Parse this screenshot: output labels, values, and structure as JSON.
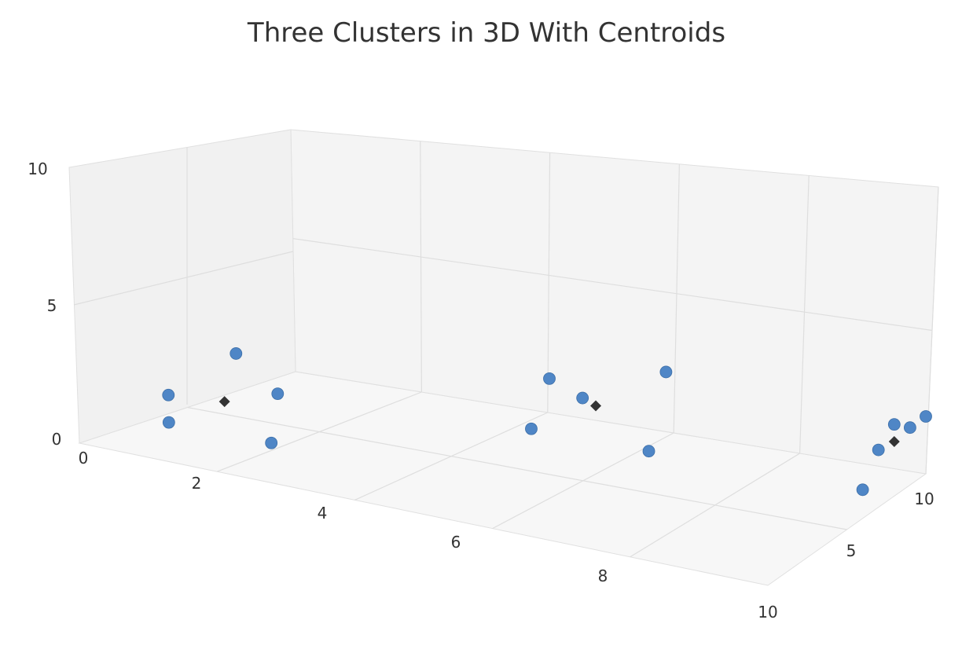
{
  "chart_data": {
    "type": "scatter",
    "title": "Three Clusters in 3D With Centroids",
    "xlabel": "",
    "ylabel": "",
    "zlabel": "",
    "xlim": [
      0,
      10
    ],
    "ylim": [
      0,
      10
    ],
    "zlim": [
      0,
      10
    ],
    "x_ticks": [
      "0",
      "2",
      "4",
      "6",
      "8",
      "10"
    ],
    "y_ticks": [
      "0",
      "5",
      "10"
    ],
    "z_ticks": [
      "5",
      "10"
    ],
    "grid": true,
    "legend": "none",
    "series": [
      {
        "role": "points",
        "color": "#4f86c6",
        "marker": "circle",
        "values": [
          {
            "x": 1.0,
            "y": 2.0,
            "z": 1.0
          },
          {
            "x": 1.0,
            "y": 1.0,
            "z": 1.0
          },
          {
            "x": 2.0,
            "y": 4.0,
            "z": 1.0
          },
          {
            "x": 2.0,
            "y": 2.0,
            "z": 3.0
          },
          {
            "x": 2.5,
            "y": 1.0,
            "z": 1.0
          },
          {
            "x": 5.5,
            "y": 2.0,
            "z": 4.0
          },
          {
            "x": 5.5,
            "y": 3.5,
            "z": 5.0
          },
          {
            "x": 6.0,
            "y": 3.0,
            "z": 5.0
          },
          {
            "x": 7.0,
            "y": 4.0,
            "z": 6.0
          },
          {
            "x": 7.0,
            "y": 1.5,
            "z": 5.0
          },
          {
            "x": 10.0,
            "y": 2.0,
            "z": 7.0
          },
          {
            "x": 10.0,
            "y": 2.5,
            "z": 8.0
          },
          {
            "x": 10.0,
            "y": 1.0,
            "z": 6.0
          },
          {
            "x": 10.0,
            "y": 2.0,
            "z": 10.0
          },
          {
            "x": 10.0,
            "y": 2.0,
            "z": 9.0
          }
        ]
      },
      {
        "role": "centroids",
        "color": "#333333",
        "marker": "diamond",
        "values": [
          {
            "x": 1.7,
            "y": 2.0,
            "z": 1.4
          },
          {
            "x": 6.2,
            "y": 2.8,
            "z": 5.0
          },
          {
            "x": 10.0,
            "y": 1.9,
            "z": 8.0
          }
        ]
      }
    ]
  }
}
